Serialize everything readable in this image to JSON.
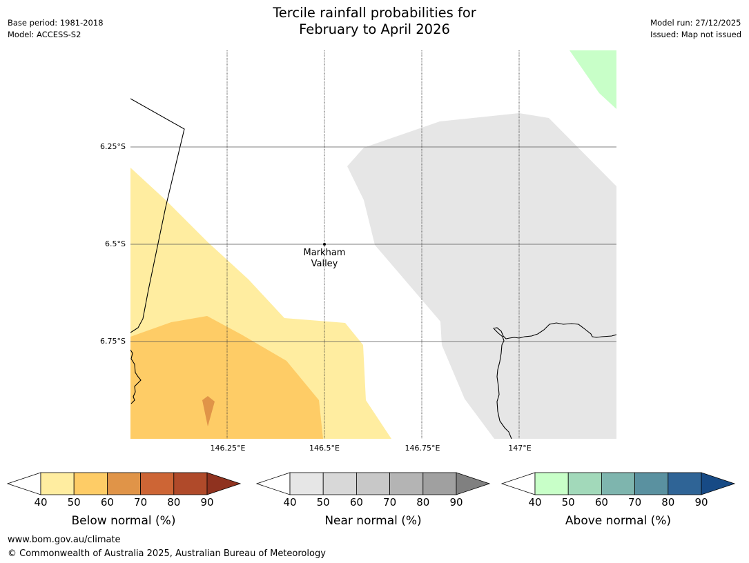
{
  "header": {
    "title_line1": "Tercile rainfall probabilities for",
    "title_line2": "February to April 2026",
    "base_period": "Base period: 1981-2018",
    "model": "Model: ACCESS-S2",
    "model_run": "Model run: 27/12/2025",
    "issued": "Issued: Map not issued"
  },
  "map": {
    "lat_labels": [
      "6.25°S",
      "6.5°S",
      "6.75°S"
    ],
    "lon_labels": [
      "146.25°E",
      "146.5°E",
      "146.75°E",
      "147°E"
    ],
    "place": {
      "name_line1": "Markham",
      "name_line2": "Valley"
    },
    "colors": {
      "below_40": "#ffeda0",
      "below_50": "#fecc66",
      "below_60": "#e09448",
      "near_40": "#e6e6e6",
      "above_40": "#c8ffc8"
    }
  },
  "colorbars": [
    {
      "label": "Below normal (%)",
      "ticks": [
        "40",
        "50",
        "60",
        "70",
        "80",
        "90"
      ],
      "colors": [
        "#ffeda0",
        "#fecc66",
        "#e09448",
        "#cd6535",
        "#b04a2a",
        "#8f321f"
      ]
    },
    {
      "label": "Near normal (%)",
      "ticks": [
        "40",
        "50",
        "60",
        "70",
        "80",
        "90"
      ],
      "colors": [
        "#e6e6e6",
        "#d8d8d8",
        "#c8c8c8",
        "#b4b4b4",
        "#a0a0a0",
        "#808080"
      ]
    },
    {
      "label": "Above normal (%)",
      "ticks": [
        "40",
        "50",
        "60",
        "70",
        "80",
        "90"
      ],
      "colors": [
        "#c8ffc8",
        "#a2d9ba",
        "#7eb5ae",
        "#5a91a0",
        "#2f6496",
        "#174a85"
      ]
    }
  ],
  "footer": {
    "url": "www.bom.gov.au/climate",
    "copyright": "© Commonwealth of Australia 2025, Australian Bureau of Meteorology"
  }
}
